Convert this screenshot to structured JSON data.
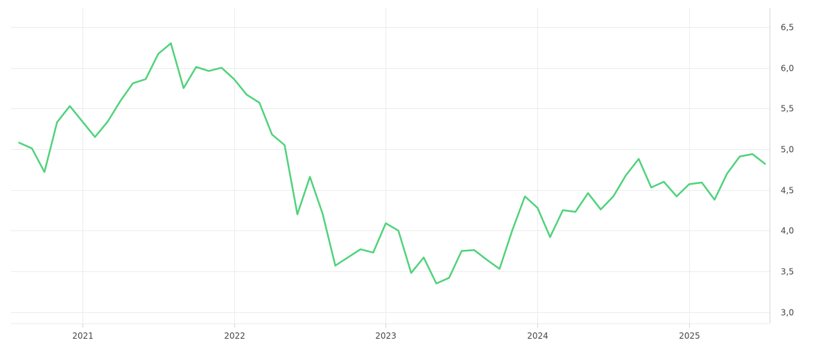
{
  "chart_data": {
    "type": "line",
    "title": "",
    "xlabel": "",
    "ylabel": "",
    "x_tick_labels": [
      "2021",
      "2022",
      "2023",
      "2024",
      "2025"
    ],
    "x_tick_values": [
      2021.0,
      2022.0,
      2023.0,
      2024.0,
      2025.0
    ],
    "y_tick_labels": [
      "3,0",
      "3,5",
      "4,0",
      "4,5",
      "5,0",
      "5,5",
      "6,0",
      "6,5"
    ],
    "y_tick_values": [
      3.0,
      3.5,
      4.0,
      4.5,
      5.0,
      5.5,
      6.0,
      6.5
    ],
    "xlim": [
      2020.53,
      2025.53
    ],
    "ylim": [
      2.86,
      6.73
    ],
    "y_axis_position": "right",
    "grid": true,
    "legend": "none",
    "color": "#4fd27a",
    "series": [
      {
        "x": [
          2020.583,
          2020.667,
          2020.75,
          2020.833,
          2020.917,
          2021.0,
          2021.083,
          2021.167,
          2021.25,
          2021.333,
          2021.417,
          2021.5,
          2021.583,
          2021.667,
          2021.75,
          2021.833,
          2021.917,
          2022.0,
          2022.083,
          2022.167,
          2022.25,
          2022.333,
          2022.417,
          2022.5,
          2022.583,
          2022.667,
          2022.75,
          2022.833,
          2022.917,
          2023.0,
          2023.083,
          2023.167,
          2023.25,
          2023.333,
          2023.417,
          2023.5,
          2023.583,
          2023.667,
          2023.75,
          2023.833,
          2023.917,
          2024.0,
          2024.083,
          2024.167,
          2024.25,
          2024.333,
          2024.417,
          2024.5,
          2024.583,
          2024.667,
          2024.75,
          2024.833,
          2024.917,
          2025.0,
          2025.083,
          2025.167,
          2025.25,
          2025.333,
          2025.417,
          2025.5
        ],
        "y": [
          5.08,
          5.01,
          4.72,
          5.33,
          5.53,
          5.34,
          5.15,
          5.34,
          5.59,
          5.81,
          5.86,
          6.17,
          6.3,
          5.75,
          6.01,
          5.96,
          6.0,
          5.86,
          5.67,
          5.57,
          5.18,
          5.05,
          4.2,
          4.66,
          4.21,
          3.57,
          3.67,
          3.77,
          3.73,
          4.09,
          4.0,
          3.48,
          3.67,
          3.35,
          3.42,
          3.75,
          3.76,
          3.64,
          3.53,
          4.0,
          4.42,
          4.28,
          3.92,
          4.25,
          4.23,
          4.46,
          4.26,
          4.42,
          4.68,
          4.88,
          4.53,
          4.6,
          4.42,
          4.57,
          4.59,
          4.38,
          4.7,
          4.91,
          4.94,
          4.82
        ]
      }
    ]
  }
}
